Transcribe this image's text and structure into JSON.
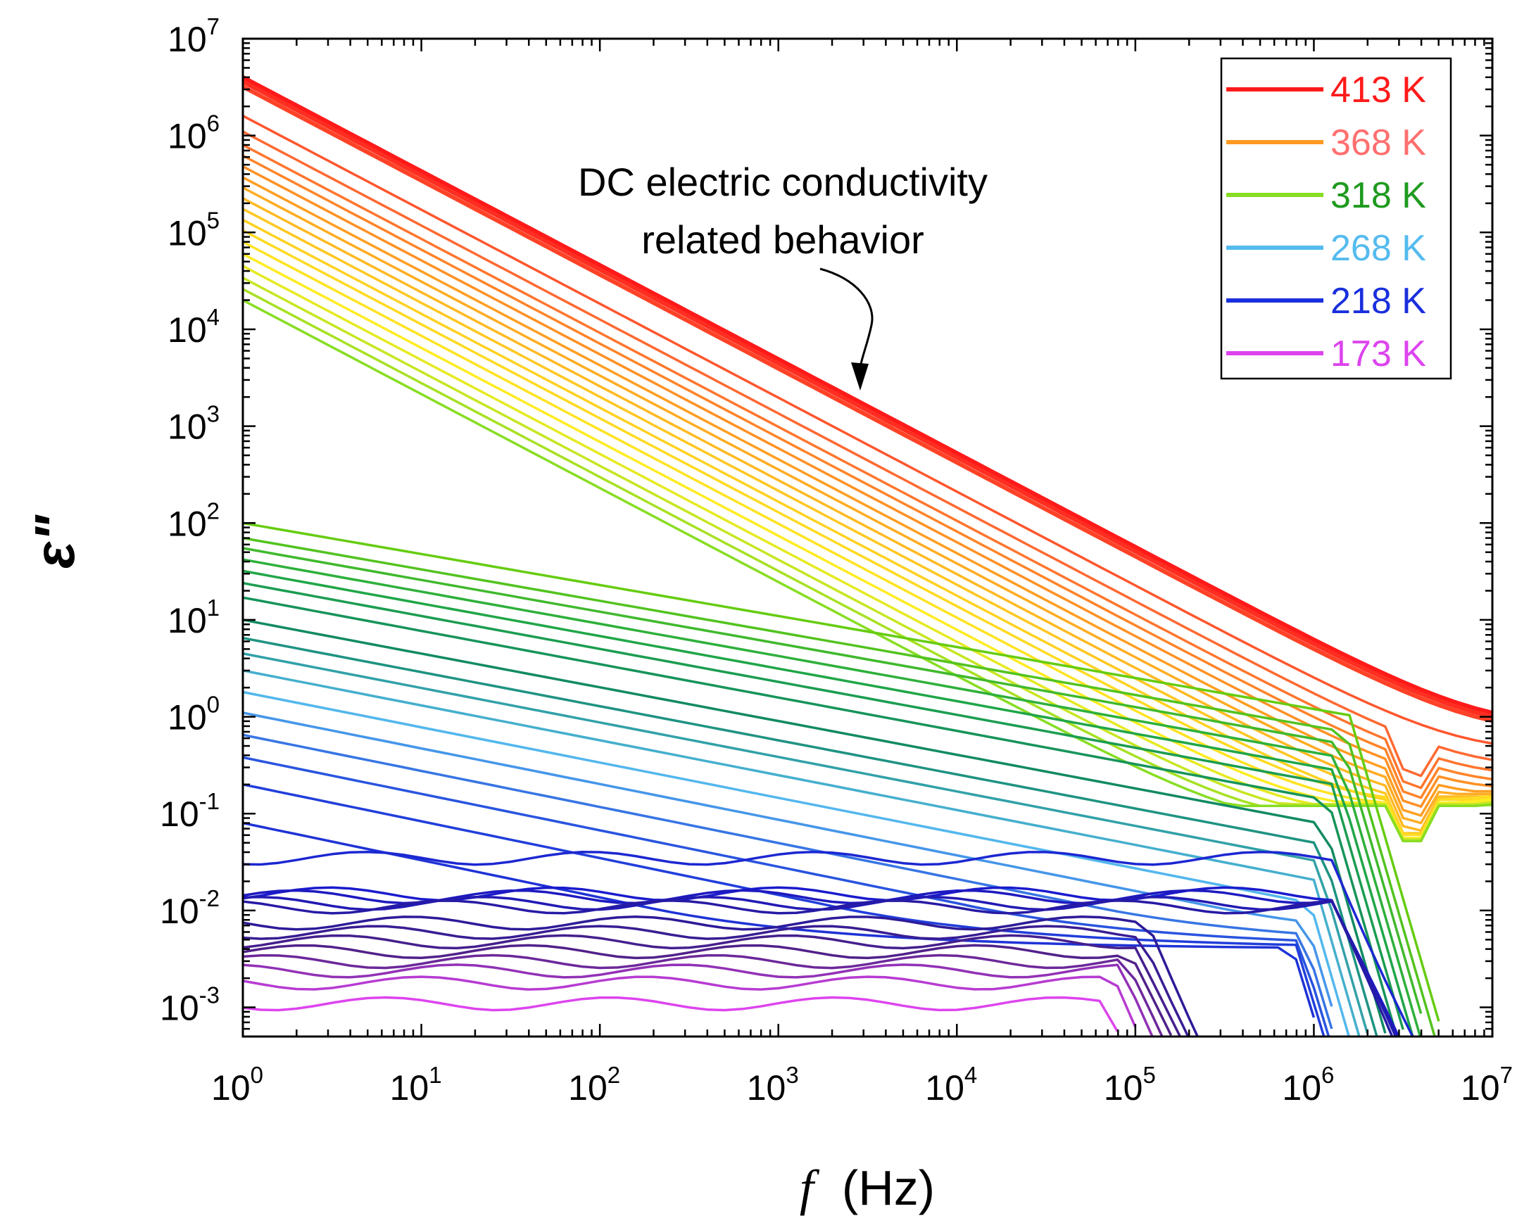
{
  "chart_data": {
    "type": "line",
    "xlabel_symbol": "f",
    "xlabel_unit": "(Hz)",
    "ylabel": "ε\"",
    "xscale": "log",
    "yscale": "log",
    "xlim": [
      1,
      10000000
    ],
    "ylim": [
      0.0005,
      10000000
    ],
    "x_ticks": [
      {
        "base": "10",
        "exp": "0",
        "value": 1
      },
      {
        "base": "10",
        "exp": "1",
        "value": 10
      },
      {
        "base": "10",
        "exp": "2",
        "value": 100
      },
      {
        "base": "10",
        "exp": "3",
        "value": 1000
      },
      {
        "base": "10",
        "exp": "4",
        "value": 10000
      },
      {
        "base": "10",
        "exp": "5",
        "value": 100000
      },
      {
        "base": "10",
        "exp": "6",
        "value": 1000000
      },
      {
        "base": "10",
        "exp": "7",
        "value": 10000000
      }
    ],
    "y_ticks": [
      {
        "base": "10",
        "exp": "-3",
        "value": 0.001
      },
      {
        "base": "10",
        "exp": "-2",
        "value": 0.01
      },
      {
        "base": "10",
        "exp": "-1",
        "value": 0.1
      },
      {
        "base": "10",
        "exp": "0",
        "value": 1
      },
      {
        "base": "10",
        "exp": "1",
        "value": 10
      },
      {
        "base": "10",
        "exp": "2",
        "value": 100
      },
      {
        "base": "10",
        "exp": "3",
        "value": 1000
      },
      {
        "base": "10",
        "exp": "4",
        "value": 10000
      },
      {
        "base": "10",
        "exp": "5",
        "value": 100000
      },
      {
        "base": "10",
        "exp": "6",
        "value": 1000000
      },
      {
        "base": "10",
        "exp": "7",
        "value": 10000000
      }
    ],
    "legend_placement": "top-right",
    "legend": [
      {
        "label": "413 K",
        "line_color": "#ff1a1a",
        "text_color": "#ff1a1a"
      },
      {
        "label": "368 K",
        "line_color": "#ff9922",
        "text_color": "#ff6f6f"
      },
      {
        "label": "318 K",
        "line_color": "#88dd22",
        "text_color": "#1f9a1f"
      },
      {
        "label": "268 K",
        "line_color": "#55bbee",
        "text_color": "#55bbee"
      },
      {
        "label": "218 K",
        "line_color": "#1a2fdd",
        "text_color": "#1a2fdd"
      },
      {
        "label": "173 K",
        "line_color": "#dd44ee",
        "text_color": "#dd44ee"
      }
    ],
    "annotation": {
      "lines": [
        "DC electric conductivity",
        "related behavior"
      ],
      "points_to": {
        "x": 2500,
        "y": 2500
      }
    },
    "conductivity_family": {
      "color_stops": [
        "#ff1a1a",
        "#ff6633",
        "#ff9922",
        "#ffcc22",
        "#ffee22",
        "#88dd22"
      ],
      "y_at_1Hz": [
        4000000,
        3600000,
        3200000,
        1600000,
        1100000,
        800000,
        620000,
        480000,
        370000,
        290000,
        225000,
        175000,
        135000,
        105000,
        80000,
        60000,
        45000,
        34000,
        26000,
        20000
      ],
      "slope": -0.97,
      "floor_at_high_freq": [
        0.75,
        0.7,
        0.65,
        0.45,
        0.3,
        0.25,
        0.21,
        0.19,
        0.17,
        0.16,
        0.15,
        0.145,
        0.14,
        0.135,
        0.13,
        0.13,
        0.125,
        0.125,
        0.12,
        0.12
      ]
    },
    "low_temp_family": {
      "color_stops": [
        "#66cc11",
        "#22aa44",
        "#118866",
        "#55bbee",
        "#2244dd",
        "#1a1acc",
        "#2a1a99",
        "#552288",
        "#dd44ee"
      ],
      "y_at_1Hz": [
        100,
        70,
        55,
        42,
        32,
        24,
        17,
        10,
        6.5,
        4.5,
        3,
        1.8,
        1.1,
        0.65,
        0.38,
        0.2,
        0.08,
        0.035,
        0.015,
        0.014,
        0.012,
        0.011,
        0.0075,
        0.006,
        0.0048,
        0.0038,
        0.003,
        0.0024,
        0.0018,
        0.0011
      ]
    }
  }
}
